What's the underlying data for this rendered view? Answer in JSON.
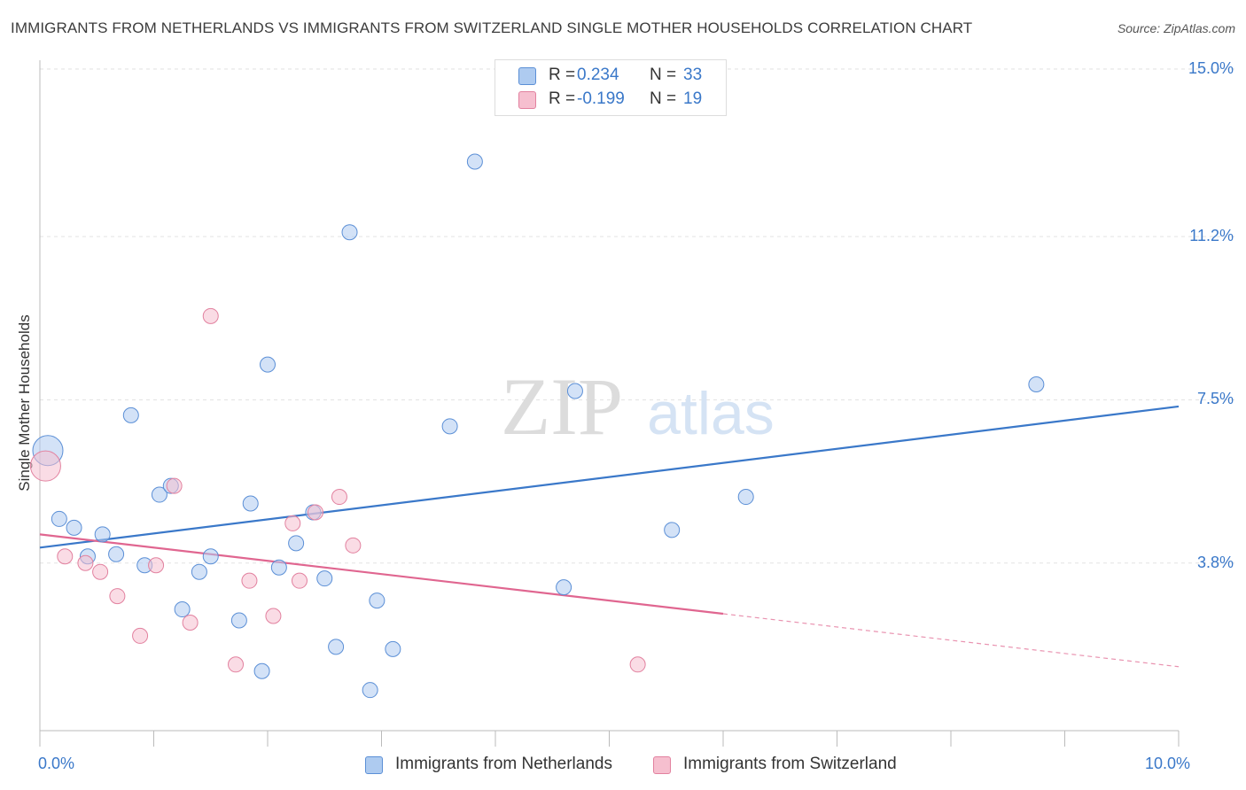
{
  "title": "IMMIGRANTS FROM NETHERLANDS VS IMMIGRANTS FROM SWITZERLAND SINGLE MOTHER HOUSEHOLDS CORRELATION CHART",
  "source": "Source: ZipAtlas.com",
  "watermark": {
    "zip": "ZIP",
    "atlas": "atlas"
  },
  "legend": {
    "r_label": "R =",
    "n_label": "N =",
    "rows": [
      {
        "r": "0.234",
        "n": "33",
        "color": "#aecbf0"
      },
      {
        "r": "-0.199",
        "n": "19",
        "color": "#f6bfcf"
      }
    ]
  },
  "chart_data": {
    "type": "scatter",
    "title": "IMMIGRANTS FROM NETHERLANDS VS IMMIGRANTS FROM SWITZERLAND SINGLE MOTHER HOUSEHOLDS CORRELATION CHART",
    "xlabel": "",
    "ylabel": "Single Mother Households",
    "xlim": [
      0,
      10
    ],
    "ylim": [
      0,
      15.4
    ],
    "x_tick_labels": [
      {
        "value": 0,
        "label": "0.0%"
      },
      {
        "value": 10,
        "label": "10.0%"
      }
    ],
    "y_tick_labels": [
      {
        "value": 3.8,
        "label": "3.8%"
      },
      {
        "value": 7.5,
        "label": "7.5%"
      },
      {
        "value": 11.2,
        "label": "11.2%"
      },
      {
        "value": 15.0,
        "label": "15.0%"
      }
    ],
    "x_minor_ticks": [
      0,
      1,
      2,
      3,
      4,
      5,
      6,
      7,
      8,
      9,
      10
    ],
    "grid": true,
    "legend_position": "top-center",
    "series": [
      {
        "name": "Immigrants from Netherlands",
        "color": "#aecbf0",
        "stroke": "#5b8fd6",
        "trend_color": "#3a78c9",
        "trend": {
          "x0": 0,
          "y0": 4.15,
          "x1": 10,
          "y1": 7.35,
          "dashed_from": null
        },
        "points": [
          {
            "x": 0.07,
            "y": 6.35,
            "big": true
          },
          {
            "x": 0.17,
            "y": 4.8
          },
          {
            "x": 0.3,
            "y": 4.6
          },
          {
            "x": 0.42,
            "y": 3.95
          },
          {
            "x": 0.55,
            "y": 4.45
          },
          {
            "x": 0.67,
            "y": 4.0
          },
          {
            "x": 0.8,
            "y": 7.15
          },
          {
            "x": 0.92,
            "y": 3.75
          },
          {
            "x": 1.05,
            "y": 5.35
          },
          {
            "x": 1.15,
            "y": 5.55
          },
          {
            "x": 1.25,
            "y": 2.75
          },
          {
            "x": 1.4,
            "y": 3.6
          },
          {
            "x": 1.5,
            "y": 3.95
          },
          {
            "x": 1.75,
            "y": 2.5
          },
          {
            "x": 1.85,
            "y": 5.15
          },
          {
            "x": 1.95,
            "y": 1.35
          },
          {
            "x": 2.0,
            "y": 8.3
          },
          {
            "x": 2.1,
            "y": 3.7
          },
          {
            "x": 2.25,
            "y": 4.25
          },
          {
            "x": 2.4,
            "y": 4.95
          },
          {
            "x": 2.5,
            "y": 3.45
          },
          {
            "x": 2.6,
            "y": 1.9
          },
          {
            "x": 2.72,
            "y": 11.3
          },
          {
            "x": 2.9,
            "y": 0.92
          },
          {
            "x": 2.96,
            "y": 2.95
          },
          {
            "x": 3.1,
            "y": 1.85
          },
          {
            "x": 3.6,
            "y": 6.9
          },
          {
            "x": 3.82,
            "y": 12.9
          },
          {
            "x": 4.6,
            "y": 3.25
          },
          {
            "x": 4.7,
            "y": 7.7
          },
          {
            "x": 5.55,
            "y": 4.55
          },
          {
            "x": 6.2,
            "y": 5.3
          },
          {
            "x": 8.75,
            "y": 7.85
          }
        ]
      },
      {
        "name": "Immigrants from Switzerland",
        "color": "#f6bfcf",
        "stroke": "#e2819f",
        "trend_color": "#e06690",
        "trend": {
          "x0": 0,
          "y0": 4.45,
          "x1": 10,
          "y1": 1.45,
          "dashed_from": 6.0
        },
        "points": [
          {
            "x": 0.05,
            "y": 6.0,
            "big": true
          },
          {
            "x": 0.22,
            "y": 3.95
          },
          {
            "x": 0.4,
            "y": 3.8
          },
          {
            "x": 0.53,
            "y": 3.6
          },
          {
            "x": 0.68,
            "y": 3.05
          },
          {
            "x": 0.88,
            "y": 2.15
          },
          {
            "x": 1.02,
            "y": 3.75
          },
          {
            "x": 1.18,
            "y": 5.55
          },
          {
            "x": 1.32,
            "y": 2.45
          },
          {
            "x": 1.5,
            "y": 9.4
          },
          {
            "x": 1.72,
            "y": 1.5
          },
          {
            "x": 1.84,
            "y": 3.4
          },
          {
            "x": 2.05,
            "y": 2.6
          },
          {
            "x": 2.22,
            "y": 4.7
          },
          {
            "x": 2.28,
            "y": 3.4
          },
          {
            "x": 2.42,
            "y": 4.95
          },
          {
            "x": 2.63,
            "y": 5.3
          },
          {
            "x": 2.75,
            "y": 4.2
          },
          {
            "x": 5.25,
            "y": 1.5
          }
        ]
      }
    ]
  }
}
